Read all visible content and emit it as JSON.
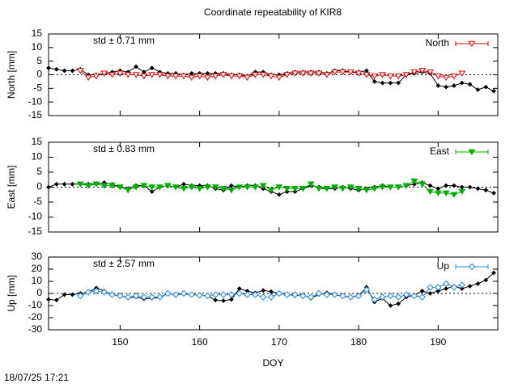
{
  "title": "Coordinate repeatability of KIR8",
  "timestamp": "18/07/25 17:21",
  "chart_data": [
    {
      "type": "line",
      "ylabel": "North [mm]",
      "annotation": "std ± 0.71 mm",
      "legend": "upper right",
      "xlim": [
        141,
        197.5
      ],
      "xticks": [
        150,
        160,
        170,
        180,
        190
      ],
      "ylim": [
        -15,
        15
      ],
      "yticks": [
        -15,
        -10,
        -5,
        0,
        5,
        10,
        15
      ],
      "series": [
        {
          "color": "#000000",
          "marker": "diamond",
          "filled": true,
          "x": [
            141,
            142,
            143,
            144,
            145,
            146,
            147,
            148,
            149,
            150,
            151,
            152,
            153,
            154,
            155,
            156,
            157,
            158,
            159,
            160,
            161,
            162,
            163,
            164,
            165,
            166,
            167,
            168,
            169,
            170,
            171,
            172,
            173,
            174,
            175,
            176,
            177,
            178,
            179,
            180,
            181,
            182,
            183,
            184,
            185,
            186,
            187,
            188,
            189,
            190,
            191,
            192,
            193,
            194,
            195,
            196,
            197
          ],
          "values": [
            2.5,
            2,
            1.5,
            1.5,
            2,
            0,
            0,
            0.5,
            1,
            1.5,
            1,
            3,
            1,
            2.5,
            1,
            0.5,
            0.5,
            0,
            0.5,
            0.5,
            0.5,
            0.5,
            0.5,
            0,
            0,
            -0.5,
            1,
            1,
            0,
            0,
            0.5,
            1,
            1,
            1,
            1,
            0.5,
            1.5,
            1.5,
            1,
            1,
            1.5,
            -2.5,
            -3,
            -3,
            -3,
            0,
            0.5,
            1,
            0.5,
            -4,
            -4.5,
            -4,
            -3,
            -3.5,
            -5.5,
            -4.5,
            -6
          ]
        },
        {
          "name": "North",
          "color": "#e00000",
          "marker": "triangle-down",
          "filled": false,
          "x": [
            145,
            146,
            147,
            148,
            149,
            150,
            151,
            152,
            153,
            154,
            155,
            156,
            157,
            158,
            159,
            160,
            161,
            162,
            163,
            164,
            165,
            166,
            167,
            168,
            169,
            170,
            171,
            172,
            173,
            174,
            175,
            176,
            177,
            178,
            179,
            180,
            181,
            182,
            183,
            184,
            185,
            186,
            187,
            188,
            189,
            190,
            191,
            192,
            193
          ],
          "values": [
            1.5,
            -1,
            -0.5,
            0.5,
            0,
            0.5,
            0,
            0,
            -0.5,
            0,
            0,
            -0.5,
            -0.5,
            -0.5,
            -1,
            -0.5,
            -1,
            -0.5,
            0,
            -0.5,
            -0.5,
            -1,
            0,
            0,
            -0.5,
            -1,
            0,
            0.5,
            0.5,
            0.5,
            0.5,
            0,
            1,
            1,
            1,
            0.5,
            0,
            -0.5,
            0,
            -0.5,
            -0.5,
            0,
            1,
            1.5,
            1,
            -0.5,
            -1,
            -0.5,
            0.5
          ]
        }
      ]
    },
    {
      "type": "line",
      "ylabel": "East [mm]",
      "annotation": "std ± 0.83 mm",
      "legend": "upper right",
      "xlim": [
        141,
        197.5
      ],
      "xticks": [
        150,
        160,
        170,
        180,
        190
      ],
      "ylim": [
        -15,
        15
      ],
      "yticks": [
        -15,
        -10,
        -5,
        0,
        5,
        10,
        15
      ],
      "series": [
        {
          "color": "#000000",
          "marker": "diamond",
          "filled": true,
          "x": [
            141,
            142,
            143,
            144,
            145,
            146,
            147,
            148,
            149,
            150,
            151,
            152,
            153,
            154,
            155,
            156,
            157,
            158,
            159,
            160,
            161,
            162,
            163,
            164,
            165,
            166,
            167,
            168,
            169,
            170,
            171,
            172,
            173,
            174,
            175,
            176,
            177,
            178,
            179,
            180,
            181,
            182,
            183,
            184,
            185,
            186,
            187,
            188,
            189,
            190,
            191,
            192,
            193,
            194,
            195,
            196,
            197
          ],
          "values": [
            0,
            1,
            1,
            1,
            1,
            1,
            1,
            1.5,
            1,
            0,
            -0.5,
            0.5,
            0.5,
            -1.5,
            0,
            0.5,
            0,
            1,
            0.5,
            0.5,
            0.5,
            -0.5,
            -1,
            0.5,
            0,
            0.5,
            0.5,
            -0.5,
            -1.5,
            -2.5,
            -1.5,
            -1.5,
            -0.5,
            0.5,
            0,
            -0.5,
            -0.5,
            0,
            -0.5,
            -1,
            -0.5,
            0,
            0.5,
            0,
            0,
            0.5,
            1,
            1.5,
            0.5,
            -0.5,
            0.5,
            0.5,
            0,
            0,
            -0.5,
            -1,
            -2
          ]
        },
        {
          "name": "East",
          "color": "#00b000",
          "marker": "triangle-down",
          "filled": true,
          "x": [
            145,
            146,
            147,
            148,
            149,
            150,
            151,
            152,
            153,
            154,
            155,
            156,
            157,
            158,
            159,
            160,
            161,
            162,
            163,
            164,
            165,
            166,
            167,
            168,
            169,
            170,
            171,
            172,
            173,
            174,
            175,
            176,
            177,
            178,
            179,
            180,
            181,
            182,
            183,
            184,
            185,
            186,
            187,
            188,
            189,
            190,
            191,
            192,
            193
          ],
          "values": [
            1,
            0.5,
            1,
            0.5,
            0.5,
            0,
            -1,
            0,
            0.5,
            0,
            0,
            0.5,
            0,
            -0.5,
            0,
            -0.5,
            0,
            0,
            -0.5,
            -1,
            0,
            0,
            0,
            0.5,
            -1,
            0,
            -0.5,
            -0.5,
            -0.5,
            1,
            -0.5,
            -0.5,
            0,
            -0.5,
            0,
            -0.5,
            -1,
            -0.5,
            0,
            0,
            0,
            0.5,
            2,
            1,
            -1.5,
            -2,
            -2,
            -2.5,
            -1.5
          ]
        }
      ]
    },
    {
      "type": "line",
      "ylabel": "Up [mm]",
      "annotation": "std ± 2.57 mm",
      "legend": "upper right",
      "xlabel": "DOY",
      "xlim": [
        141,
        197.5
      ],
      "xticks": [
        150,
        160,
        170,
        180,
        190
      ],
      "ylim": [
        -30,
        30
      ],
      "yticks": [
        -30,
        -20,
        -10,
        0,
        10,
        20,
        30
      ],
      "series": [
        {
          "color": "#000000",
          "marker": "diamond",
          "filled": true,
          "x": [
            141,
            142,
            143,
            144,
            145,
            146,
            147,
            148,
            149,
            150,
            151,
            152,
            153,
            154,
            155,
            156,
            157,
            158,
            159,
            160,
            161,
            162,
            163,
            164,
            165,
            166,
            167,
            168,
            169,
            170,
            171,
            172,
            173,
            174,
            175,
            176,
            177,
            178,
            179,
            180,
            181,
            182,
            183,
            184,
            185,
            186,
            187,
            188,
            189,
            190,
            191,
            192,
            193,
            194,
            195,
            196,
            197
          ],
          "values": [
            -5,
            -5.5,
            -1,
            -1,
            0,
            1,
            4.5,
            2,
            -1,
            -2,
            -3.5,
            -3,
            -4.5,
            -4,
            -3.5,
            0,
            -1,
            -0.5,
            -1,
            -1.5,
            -2,
            -5.5,
            -6,
            -5,
            4,
            2,
            0.5,
            2.5,
            1.5,
            0,
            -0.5,
            -2,
            -1,
            -4,
            -1,
            0.5,
            -1,
            -2.5,
            -3,
            -2,
            5,
            -7,
            -4,
            -10,
            -8.5,
            -3,
            -1.5,
            2,
            0,
            2,
            4,
            6,
            4,
            6,
            8,
            11,
            17
          ]
        },
        {
          "name": "Up",
          "color": "#1e88e5",
          "marker": "diamond",
          "filled": false,
          "x": [
            145,
            146,
            147,
            148,
            149,
            150,
            151,
            152,
            153,
            154,
            155,
            156,
            157,
            158,
            159,
            160,
            161,
            162,
            163,
            164,
            165,
            166,
            167,
            168,
            169,
            170,
            171,
            172,
            173,
            174,
            175,
            176,
            177,
            178,
            179,
            180,
            181,
            182,
            183,
            184,
            185,
            186,
            187,
            188,
            189,
            190,
            191,
            192,
            193
          ],
          "values": [
            -2,
            1,
            2,
            1,
            -1,
            -2,
            -3,
            -2,
            -3,
            -3,
            -3,
            0,
            -1,
            0,
            -1,
            -1.5,
            -2,
            -1,
            -1,
            -1,
            0,
            -1,
            -1,
            -3,
            -3,
            0,
            -1,
            -1,
            -2,
            -3,
            0,
            -1,
            -1,
            -2,
            -3,
            -2,
            3,
            -5,
            -3,
            -2,
            -3,
            -1,
            -2,
            -3,
            5,
            5,
            8,
            5,
            7
          ]
        }
      ]
    }
  ]
}
